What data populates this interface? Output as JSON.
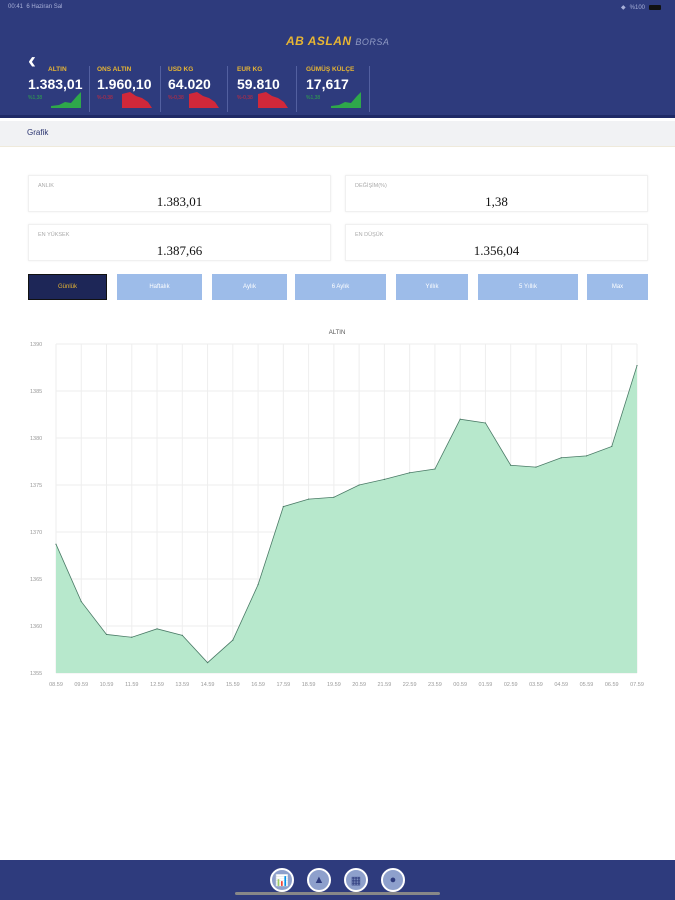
{
  "status_bar": {
    "time": "00:41",
    "date": "6 Haziran Sal",
    "battery": "%100"
  },
  "header": {
    "logo_main": "AB ASLAN",
    "logo_sub": "BORSA",
    "back": "‹"
  },
  "tickers": [
    {
      "name": "ALTIN",
      "value": "1.383,01",
      "change": "%1,38",
      "trend": "up"
    },
    {
      "name": "ONS ALTIN",
      "value": "1.960,10",
      "change": "%-0,38",
      "trend": "down"
    },
    {
      "name": "USD KG",
      "value": "64.020",
      "change": "%-0,38",
      "trend": "down"
    },
    {
      "name": "EUR KG",
      "value": "59.810",
      "change": "%-0,38",
      "trend": "down"
    },
    {
      "name": "GÜMÜŞ KÜLÇE",
      "value": "17,617",
      "change": "%1,38",
      "trend": "up"
    }
  ],
  "subheader": {
    "title": "Grafik"
  },
  "stats": {
    "anlik": {
      "label": "ANLIK",
      "value": "1.383,01"
    },
    "degisim": {
      "label": "DEĞİŞİM(%)",
      "value": "1,38"
    },
    "en_yuksek": {
      "label": "EN YÜKSEK",
      "value": "1.387,66"
    },
    "en_dusuk": {
      "label": "EN DÜŞÜK",
      "value": "1.356,04"
    }
  },
  "periods": [
    "Günlük",
    "Haftalık",
    "Aylık",
    "6 Aylık",
    "Yıllık",
    "5 Yıllık",
    "Max"
  ],
  "active_period": "Günlük",
  "colors": {
    "header": "#2e3b7d",
    "accent": "#e7b533",
    "fill": "#b7e8cc",
    "line": "#4a7a66",
    "button": "#9dbce9"
  },
  "chart_data": {
    "type": "area",
    "title": "ALTIN",
    "xlabel": "",
    "ylabel": "",
    "ylim": [
      1355,
      1390
    ],
    "yticks": [
      1390,
      1385,
      1380,
      1375,
      1370,
      1365,
      1360,
      1355
    ],
    "x": [
      "08.59",
      "09.59",
      "10.59",
      "11.59",
      "12.59",
      "13.59",
      "14.59",
      "15.59",
      "16.59",
      "17.59",
      "18.59",
      "19.59",
      "20.59",
      "21.59",
      "22.59",
      "23.59",
      "00.59",
      "01.59",
      "02.59",
      "03.59",
      "04.59",
      "05.59",
      "06.59",
      "07.59"
    ],
    "values": [
      1368.7,
      1362.6,
      1359.1,
      1358.8,
      1359.7,
      1359.0,
      1356.1,
      1358.5,
      1364.4,
      1372.7,
      1373.5,
      1373.7,
      1375.0,
      1375.6,
      1376.3,
      1376.7,
      1382.0,
      1381.6,
      1377.1,
      1376.9,
      1377.9,
      1378.1,
      1379.1,
      1387.7
    ],
    "grid": true
  },
  "bottom_nav": [
    {
      "icon": "chart-icon",
      "glyph": "📊"
    },
    {
      "icon": "gold-icon",
      "glyph": "▲"
    },
    {
      "icon": "grid-icon",
      "glyph": "▦"
    },
    {
      "icon": "user-icon",
      "glyph": "●"
    }
  ]
}
